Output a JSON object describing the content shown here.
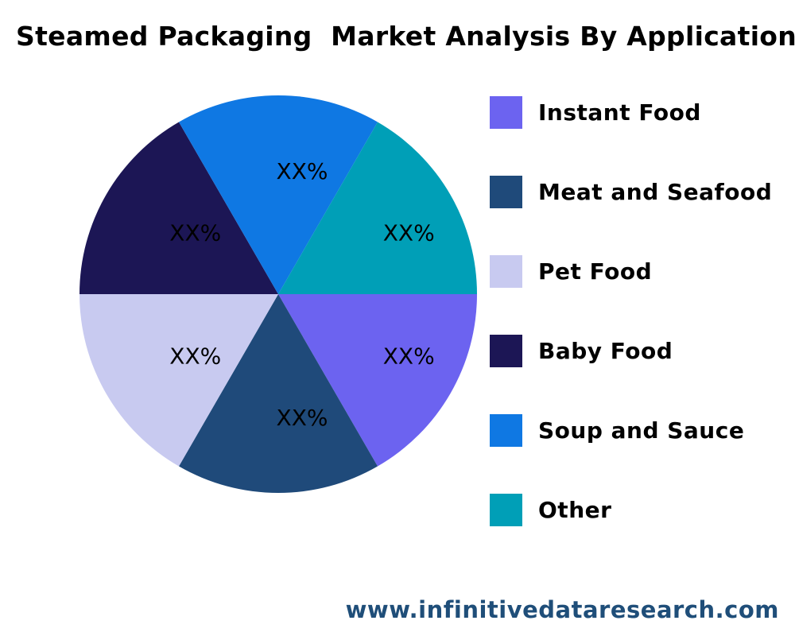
{
  "chart_data": {
    "type": "pie",
    "title": "Steamed Packaging  Market Analysis By Application",
    "categories": [
      "Instant Food",
      "Meat and Seafood",
      "Pet Food",
      "Baby Food",
      "Soup and Sauce",
      "Other"
    ],
    "values": [
      16.67,
      16.67,
      16.67,
      16.67,
      16.67,
      16.67
    ],
    "data_labels": [
      "XX%",
      "XX%",
      "XX%",
      "XX%",
      "XX%",
      "XX%"
    ],
    "colors": [
      "#6c63f0",
      "#1f4a7a",
      "#c8caf0",
      "#1c1655",
      "#0f78e3",
      "#009fb7"
    ],
    "legend_position": "right"
  },
  "header": {
    "title": "Steamed Packaging  Market Analysis By Application"
  },
  "legend": {
    "items": [
      {
        "label": "Instant Food",
        "color": "#6c63f0"
      },
      {
        "label": "Meat and Seafood",
        "color": "#1f4a7a"
      },
      {
        "label": "Pet Food",
        "color": "#c8caf0"
      },
      {
        "label": "Baby Food",
        "color": "#1c1655"
      },
      {
        "label": "Soup and Sauce",
        "color": "#0f78e3"
      },
      {
        "label": "Other",
        "color": "#009fb7"
      }
    ]
  },
  "footer": {
    "url": "www.infinitivedataresearch.com"
  }
}
